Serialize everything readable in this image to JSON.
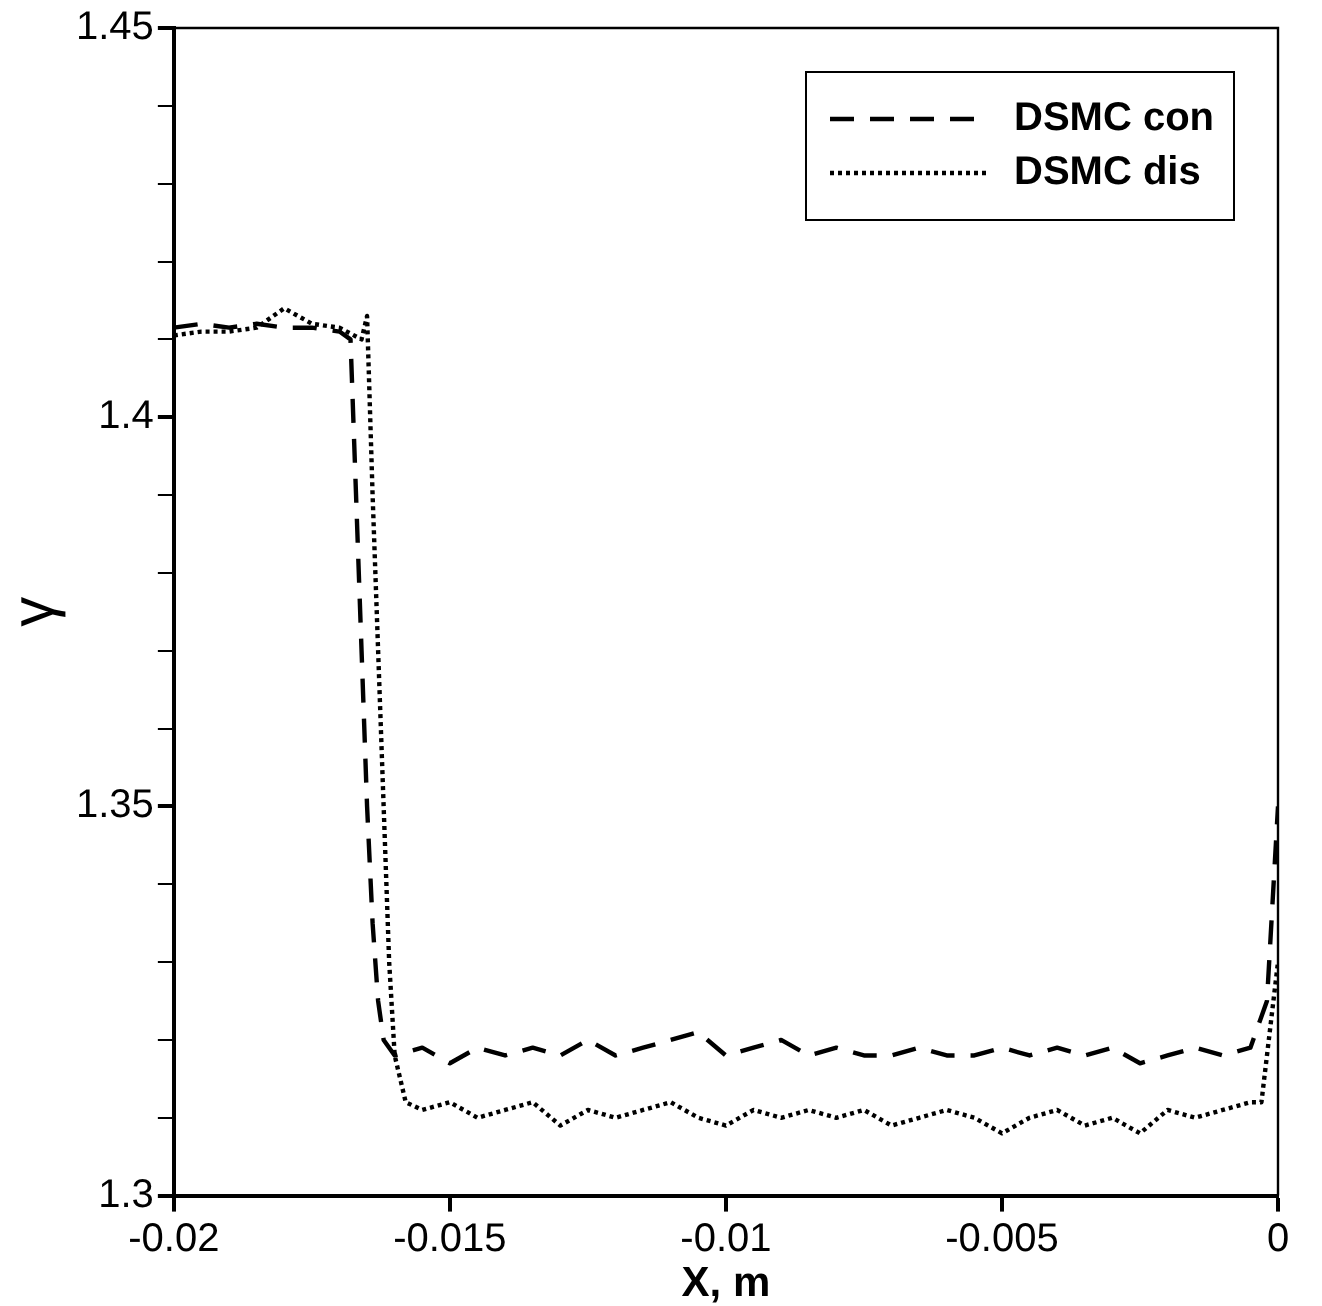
{
  "chart_data": {
    "type": "line",
    "xlabel": "X, m",
    "ylabel": "γ",
    "xlim": [
      -0.02,
      0
    ],
    "ylim": [
      1.3,
      1.45
    ],
    "xticks": [
      -0.02,
      -0.015,
      -0.01,
      -0.005,
      0
    ],
    "yticks": [
      1.3,
      {
        "value": 1.31,
        "label": null
      },
      {
        "value": 1.32,
        "label": null
      },
      {
        "value": 1.33,
        "label": null
      },
      {
        "value": 1.34,
        "label": null
      },
      1.35,
      {
        "value": 1.36,
        "label": null
      },
      {
        "value": 1.37,
        "label": null
      },
      {
        "value": 1.38,
        "label": null
      },
      {
        "value": 1.39,
        "label": null
      },
      1.4,
      {
        "value": 1.41,
        "label": null
      },
      {
        "value": 1.42,
        "label": null
      },
      {
        "value": 1.43,
        "label": null
      },
      {
        "value": 1.44,
        "label": null
      },
      1.45
    ],
    "grid": false,
    "legend": "top right",
    "marker": "none",
    "series": [
      {
        "name": "DSMC con",
        "color": "#000000",
        "line_style": "dashed",
        "x": [
          -0.02,
          -0.0195,
          -0.019,
          -0.0185,
          -0.018,
          -0.0175,
          -0.017,
          -0.0168,
          -0.0167,
          -0.0166,
          -0.0165,
          -0.0164,
          -0.0163,
          -0.0162,
          -0.016,
          -0.0155,
          -0.015,
          -0.0145,
          -0.014,
          -0.0135,
          -0.013,
          -0.0125,
          -0.012,
          -0.0115,
          -0.011,
          -0.0105,
          -0.01,
          -0.0095,
          -0.009,
          -0.0085,
          -0.008,
          -0.0075,
          -0.007,
          -0.0065,
          -0.006,
          -0.0055,
          -0.005,
          -0.0045,
          -0.004,
          -0.0035,
          -0.003,
          -0.0025,
          -0.002,
          -0.0015,
          -0.001,
          -0.0005,
          -0.0002,
          0
        ],
        "values": [
          1.4115,
          1.412,
          1.4115,
          1.412,
          1.4115,
          1.4115,
          1.411,
          1.41,
          1.39,
          1.37,
          1.35,
          1.335,
          1.325,
          1.32,
          1.318,
          1.319,
          1.317,
          1.319,
          1.318,
          1.319,
          1.318,
          1.32,
          1.318,
          1.319,
          1.32,
          1.321,
          1.318,
          1.319,
          1.32,
          1.318,
          1.319,
          1.318,
          1.318,
          1.319,
          1.318,
          1.318,
          1.319,
          1.318,
          1.319,
          1.318,
          1.319,
          1.317,
          1.318,
          1.319,
          1.318,
          1.319,
          1.325,
          1.35
        ]
      },
      {
        "name": "DSMC dis",
        "color": "#000000",
        "line_style": "dotted",
        "x": [
          -0.02,
          -0.0195,
          -0.019,
          -0.0185,
          -0.018,
          -0.0175,
          -0.017,
          -0.0166,
          -0.0165,
          -0.0164,
          -0.0163,
          -0.0162,
          -0.0161,
          -0.016,
          -0.0158,
          -0.0155,
          -0.015,
          -0.0145,
          -0.014,
          -0.0135,
          -0.013,
          -0.0125,
          -0.012,
          -0.0115,
          -0.011,
          -0.0105,
          -0.01,
          -0.0095,
          -0.009,
          -0.0085,
          -0.008,
          -0.0075,
          -0.007,
          -0.0065,
          -0.006,
          -0.0055,
          -0.005,
          -0.0045,
          -0.004,
          -0.0035,
          -0.003,
          -0.0025,
          -0.002,
          -0.0015,
          -0.001,
          -0.0005,
          -0.0003,
          0
        ],
        "values": [
          1.4105,
          1.411,
          1.411,
          1.4115,
          1.414,
          1.412,
          1.4115,
          1.41,
          1.413,
          1.39,
          1.37,
          1.35,
          1.33,
          1.318,
          1.312,
          1.311,
          1.312,
          1.31,
          1.311,
          1.312,
          1.309,
          1.311,
          1.31,
          1.311,
          1.312,
          1.31,
          1.309,
          1.311,
          1.31,
          1.311,
          1.31,
          1.311,
          1.309,
          1.31,
          1.311,
          1.31,
          1.308,
          1.31,
          1.311,
          1.309,
          1.31,
          1.308,
          1.311,
          1.31,
          1.311,
          1.312,
          1.312,
          1.33
        ]
      }
    ]
  }
}
